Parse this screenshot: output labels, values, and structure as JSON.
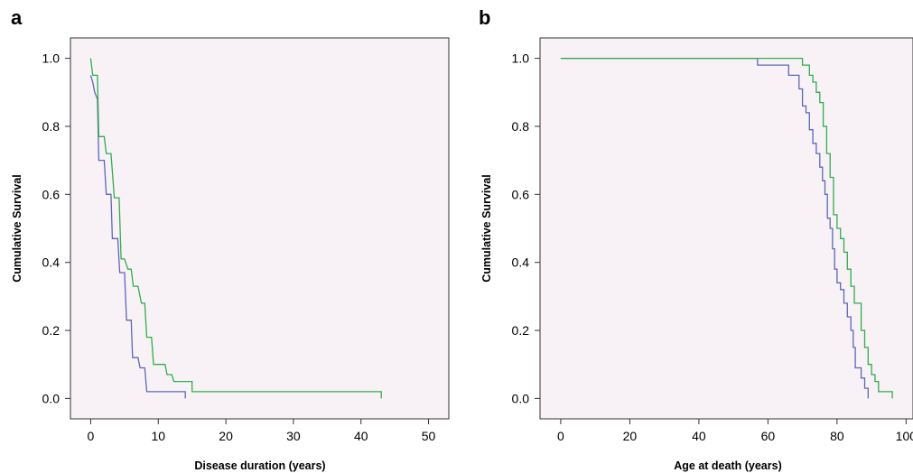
{
  "colors": {
    "series1": "#5b68b8",
    "series2": "#2daf4a",
    "plot_bg": "#f8f2f7"
  },
  "chart_data": [
    {
      "panel": "a",
      "type": "line",
      "step": true,
      "xlabel": "Disease duration (years)",
      "ylabel": "Cumulative Survival",
      "xlim": [
        -3,
        53
      ],
      "ylim": [
        -0.06,
        1.06
      ],
      "xticks": [
        "0",
        "10",
        "20",
        "30",
        "40",
        "50"
      ],
      "yticks": [
        "0.0",
        "0.2",
        "0.4",
        "0.6",
        "0.8",
        "1.0"
      ],
      "grid": false,
      "series": [
        {
          "color": "#5b68b8",
          "points": [
            [
              0,
              0.95
            ],
            [
              0.3,
              0.93
            ],
            [
              0.6,
              0.9
            ],
            [
              1,
              0.88
            ],
            [
              1.2,
              0.7
            ],
            [
              2,
              0.7
            ],
            [
              2.3,
              0.6
            ],
            [
              3,
              0.6
            ],
            [
              3.2,
              0.47
            ],
            [
              4,
              0.47
            ],
            [
              4.3,
              0.37
            ],
            [
              5,
              0.37
            ],
            [
              5.3,
              0.23
            ],
            [
              6,
              0.23
            ],
            [
              6.2,
              0.12
            ],
            [
              7,
              0.12
            ],
            [
              7.3,
              0.09
            ],
            [
              8,
              0.09
            ],
            [
              8.3,
              0.02
            ],
            [
              14,
              0.02
            ],
            [
              14,
              0.0
            ]
          ]
        },
        {
          "color": "#2daf4a",
          "points": [
            [
              0,
              1.0
            ],
            [
              0.3,
              0.95
            ],
            [
              1,
              0.95
            ],
            [
              1.2,
              0.77
            ],
            [
              2,
              0.77
            ],
            [
              2.3,
              0.72
            ],
            [
              3,
              0.72
            ],
            [
              3.5,
              0.59
            ],
            [
              4.2,
              0.59
            ],
            [
              4.5,
              0.41
            ],
            [
              5,
              0.41
            ],
            [
              5.5,
              0.38
            ],
            [
              6,
              0.38
            ],
            [
              6.3,
              0.33
            ],
            [
              7,
              0.33
            ],
            [
              7.5,
              0.28
            ],
            [
              8,
              0.28
            ],
            [
              8.3,
              0.18
            ],
            [
              9,
              0.18
            ],
            [
              9.3,
              0.1
            ],
            [
              11,
              0.1
            ],
            [
              11.3,
              0.07
            ],
            [
              12,
              0.07
            ],
            [
              12.3,
              0.05
            ],
            [
              15,
              0.05
            ],
            [
              15,
              0.02
            ],
            [
              43,
              0.02
            ],
            [
              43,
              0.0
            ]
          ]
        }
      ]
    },
    {
      "panel": "b",
      "type": "line",
      "step": true,
      "xlabel": "Age at death (years)",
      "ylabel": "Cumulative Survival",
      "xlim": [
        -6,
        102
      ],
      "ylim": [
        -0.06,
        1.06
      ],
      "xticks": [
        "0",
        "20",
        "40",
        "60",
        "80",
        "100"
      ],
      "yticks": [
        "0.0",
        "0.2",
        "0.4",
        "0.6",
        "0.8",
        "1.0"
      ],
      "grid": false,
      "series": [
        {
          "color": "#5b68b8",
          "points": [
            [
              0,
              1.0
            ],
            [
              57,
              1.0
            ],
            [
              57,
              0.98
            ],
            [
              66,
              0.98
            ],
            [
              66,
              0.95
            ],
            [
              69,
              0.95
            ],
            [
              69,
              0.91
            ],
            [
              70,
              0.91
            ],
            [
              70,
              0.86
            ],
            [
              71,
              0.86
            ],
            [
              71,
              0.84
            ],
            [
              72,
              0.84
            ],
            [
              72,
              0.79
            ],
            [
              73,
              0.79
            ],
            [
              73,
              0.75
            ],
            [
              74,
              0.75
            ],
            [
              74,
              0.72
            ],
            [
              75,
              0.72
            ],
            [
              75,
              0.68
            ],
            [
              75.8,
              0.68
            ],
            [
              75.8,
              0.64
            ],
            [
              76.5,
              0.64
            ],
            [
              76.5,
              0.6
            ],
            [
              77.2,
              0.6
            ],
            [
              77.2,
              0.53
            ],
            [
              78,
              0.53
            ],
            [
              78,
              0.5
            ],
            [
              78.7,
              0.5
            ],
            [
              78.7,
              0.44
            ],
            [
              79.3,
              0.44
            ],
            [
              79.3,
              0.38
            ],
            [
              80,
              0.38
            ],
            [
              80,
              0.34
            ],
            [
              81,
              0.34
            ],
            [
              81,
              0.32
            ],
            [
              82,
              0.32
            ],
            [
              82,
              0.28
            ],
            [
              83,
              0.28
            ],
            [
              83,
              0.24
            ],
            [
              84,
              0.24
            ],
            [
              84,
              0.2
            ],
            [
              84.7,
              0.2
            ],
            [
              84.7,
              0.15
            ],
            [
              85.3,
              0.15
            ],
            [
              85.3,
              0.09
            ],
            [
              87,
              0.09
            ],
            [
              87,
              0.06
            ],
            [
              88,
              0.06
            ],
            [
              88,
              0.03
            ],
            [
              89,
              0.03
            ],
            [
              89,
              0.0
            ]
          ]
        },
        {
          "color": "#2daf4a",
          "points": [
            [
              0,
              1.0
            ],
            [
              70,
              1.0
            ],
            [
              70,
              0.98
            ],
            [
              72,
              0.98
            ],
            [
              72,
              0.95
            ],
            [
              73,
              0.95
            ],
            [
              73,
              0.93
            ],
            [
              74,
              0.93
            ],
            [
              74,
              0.9
            ],
            [
              75,
              0.9
            ],
            [
              75,
              0.87
            ],
            [
              76,
              0.87
            ],
            [
              76,
              0.8
            ],
            [
              77,
              0.8
            ],
            [
              77,
              0.72
            ],
            [
              78,
              0.72
            ],
            [
              78,
              0.65
            ],
            [
              79,
              0.65
            ],
            [
              79,
              0.54
            ],
            [
              80,
              0.54
            ],
            [
              80,
              0.5
            ],
            [
              81,
              0.5
            ],
            [
              81,
              0.47
            ],
            [
              82,
              0.47
            ],
            [
              82,
              0.43
            ],
            [
              83,
              0.43
            ],
            [
              83,
              0.38
            ],
            [
              84,
              0.38
            ],
            [
              84,
              0.33
            ],
            [
              85,
              0.33
            ],
            [
              85,
              0.28
            ],
            [
              87,
              0.28
            ],
            [
              87,
              0.2
            ],
            [
              88,
              0.2
            ],
            [
              88,
              0.15
            ],
            [
              89,
              0.15
            ],
            [
              89,
              0.1
            ],
            [
              90,
              0.1
            ],
            [
              90,
              0.07
            ],
            [
              91,
              0.07
            ],
            [
              91,
              0.05
            ],
            [
              92,
              0.05
            ],
            [
              92,
              0.02
            ],
            [
              96,
              0.02
            ],
            [
              96,
              0.0
            ]
          ]
        }
      ]
    }
  ]
}
